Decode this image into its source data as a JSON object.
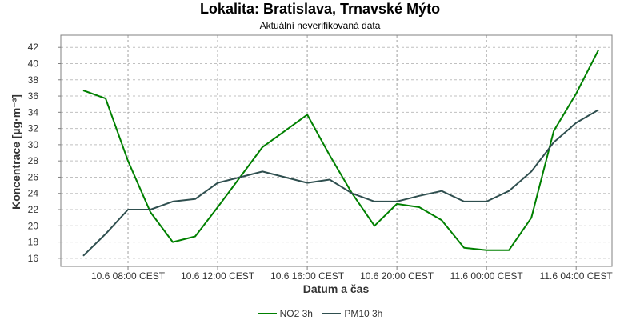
{
  "chart_data": {
    "type": "line",
    "title": "Lokalita: Bratislava, Trnavské Mýto",
    "subtitle": "Aktuální neverifikovaná data",
    "xlabel": "Datum a čas",
    "ylabel": "Koncentrace [µg·m⁻³]",
    "ylim": [
      15,
      43.5
    ],
    "yticks": [
      16,
      18,
      20,
      22,
      24,
      26,
      28,
      30,
      32,
      34,
      36,
      38,
      40,
      42
    ],
    "x_hours": [
      5,
      6,
      7,
      8,
      9,
      10,
      11,
      12,
      13,
      14,
      15,
      16,
      17,
      18,
      19,
      20,
      21,
      22,
      23,
      24,
      25,
      26,
      27,
      28
    ],
    "xticks": [
      {
        "hour": 7,
        "label": "10.6 08:00 CEST"
      },
      {
        "hour": 11,
        "label": "10.6 12:00 CEST"
      },
      {
        "hour": 15,
        "label": "10.6 16:00 CEST"
      },
      {
        "hour": 19,
        "label": "10.6 20:00 CEST"
      },
      {
        "hour": 23,
        "label": "11.6 00:00 CEST"
      },
      {
        "hour": 27,
        "label": "11.6 04:00 CEST"
      }
    ],
    "xlim": [
      4.0,
      28.6
    ],
    "grid": true,
    "legend_position": "bottom",
    "series": [
      {
        "name": "NO2 3h",
        "color": "#008000",
        "values": [
          36.7,
          35.7,
          28.0,
          21.7,
          18.0,
          18.7,
          22.3,
          26.0,
          29.7,
          31.7,
          33.7,
          28.7,
          24.0,
          20.0,
          22.7,
          22.3,
          20.7,
          17.3,
          17.0,
          17.0,
          21.0,
          31.7,
          36.3,
          41.7
        ]
      },
      {
        "name": "PM10 3h",
        "color": "#2f4f4f",
        "values": [
          16.3,
          19.0,
          22.0,
          22.0,
          23.0,
          23.3,
          25.3,
          26.0,
          26.7,
          26.0,
          25.3,
          25.7,
          24.0,
          23.0,
          23.0,
          23.7,
          24.3,
          23.0,
          23.0,
          24.3,
          26.7,
          30.3,
          32.7,
          34.3
        ]
      }
    ]
  }
}
